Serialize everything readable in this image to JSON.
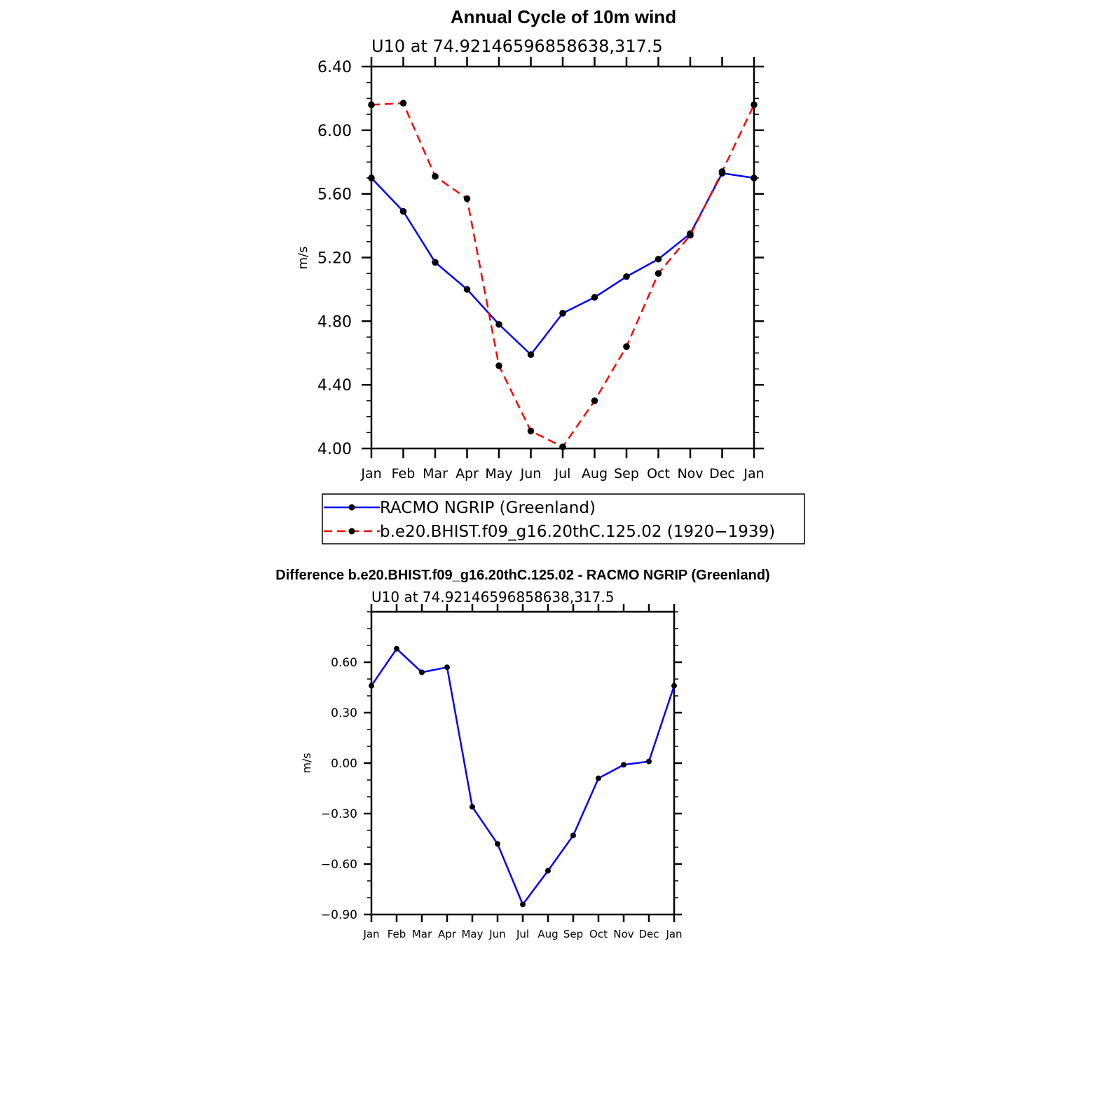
{
  "chart_data": [
    {
      "type": "line",
      "title": "Annual Cycle of 10m wind",
      "subtitle": "U10 at 74.92146596858638,317.5",
      "ylabel": "m/s",
      "xlabel": "",
      "categories": [
        "Jan",
        "Feb",
        "Mar",
        "Apr",
        "May",
        "Jun",
        "Jul",
        "Aug",
        "Sep",
        "Oct",
        "Nov",
        "Dec",
        "Jan"
      ],
      "ylim": [
        4.0,
        6.4
      ],
      "yticks": [
        "4.00",
        "4.40",
        "4.80",
        "5.20",
        "5.60",
        "6.00",
        "6.40"
      ],
      "legend": "below",
      "series": [
        {
          "name": "RACMO NGRIP (Greenland)",
          "color": "#0000ff",
          "dash": "solid",
          "values": [
            5.7,
            5.49,
            5.17,
            5.0,
            4.78,
            4.59,
            4.85,
            4.95,
            5.08,
            5.19,
            5.35,
            5.73,
            5.7
          ]
        },
        {
          "name": "b.e20.BHIST.f09_g16.20thC.125.02 (1920−1939)",
          "color": "#ff0000",
          "dash": "dashed",
          "values": [
            6.16,
            6.17,
            5.71,
            5.57,
            4.52,
            4.11,
            4.01,
            4.3,
            4.64,
            5.1,
            5.34,
            5.74,
            6.16
          ]
        }
      ]
    },
    {
      "type": "line",
      "title": "Difference b.e20.BHIST.f09_g16.20thC.125.02 - RACMO NGRIP (Greenland)",
      "subtitle": "U10 at 74.92146596858638,317.5",
      "ylabel": "m/s",
      "xlabel": "",
      "categories": [
        "Jan",
        "Feb",
        "Mar",
        "Apr",
        "May",
        "Jun",
        "Jul",
        "Aug",
        "Sep",
        "Oct",
        "Nov",
        "Dec",
        "Jan"
      ],
      "ylim": [
        -0.9,
        0.9
      ],
      "yticks": [
        "−0.90",
        "−0.60",
        "−0.30",
        "0.00",
        "0.30",
        "0.60"
      ],
      "series": [
        {
          "name": "",
          "color": "#0000ff",
          "dash": "solid",
          "values": [
            0.46,
            0.68,
            0.54,
            0.57,
            -0.26,
            -0.48,
            -0.84,
            -0.64,
            -0.43,
            -0.09,
            -0.01,
            0.01,
            0.46
          ]
        }
      ]
    }
  ]
}
